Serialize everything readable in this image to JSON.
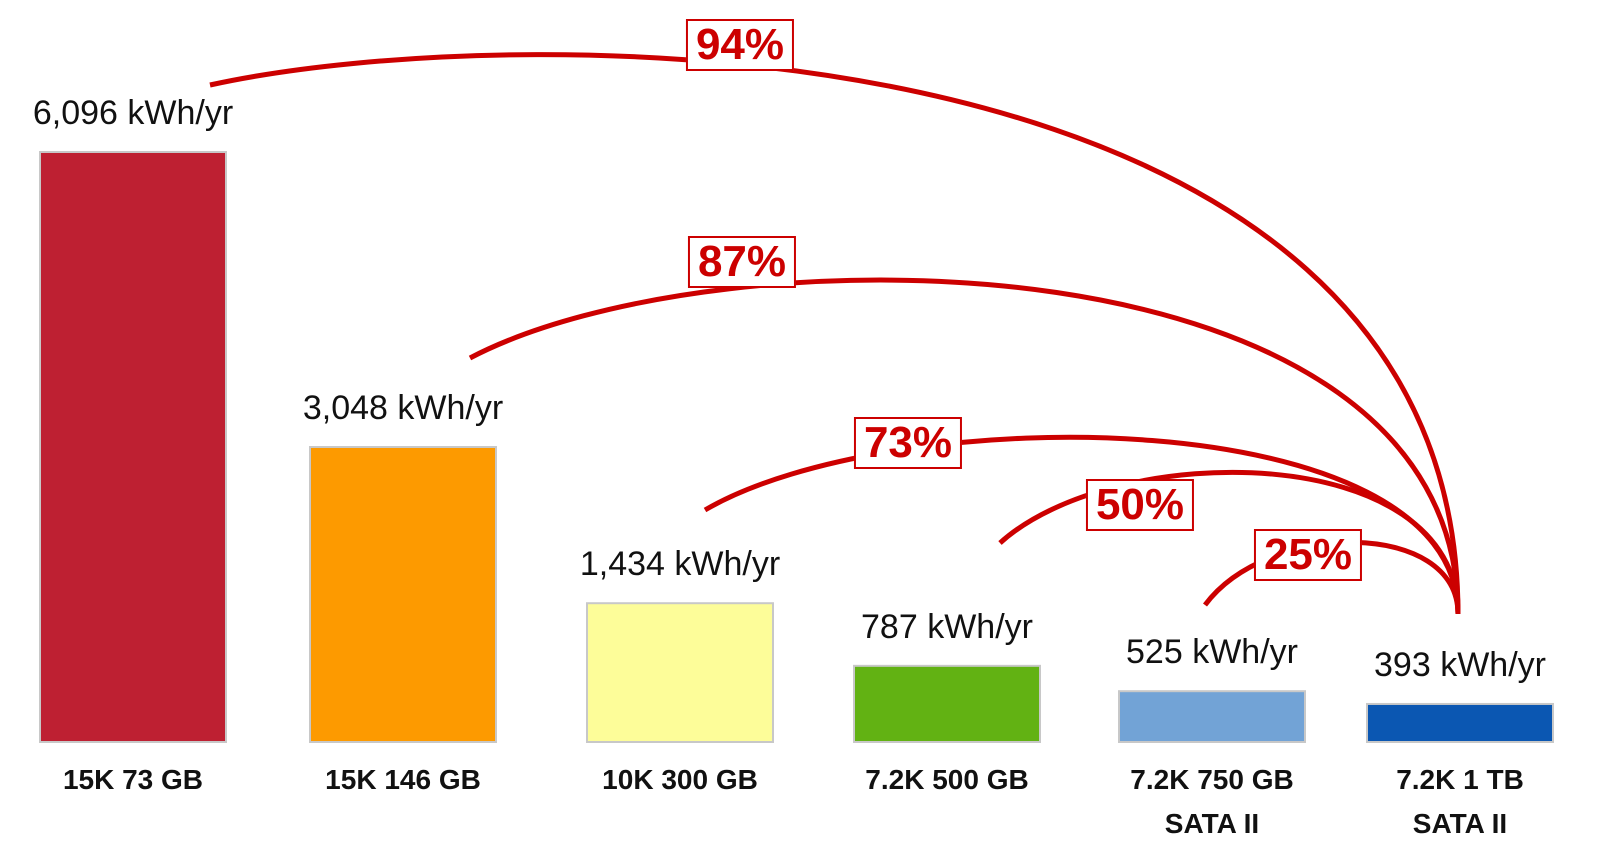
{
  "chart_data": {
    "type": "bar",
    "categories": [
      "15K 73 GB",
      "15K 146 GB",
      "10K 300 GB",
      "7.2K 500 GB",
      "7.2K 750 GB\nSATA II",
      "7.2K 1 TB\nSATA II"
    ],
    "values": [
      6096,
      3048,
      1434,
      787,
      525,
      393
    ],
    "value_labels": [
      "6,096 kWh/yr",
      "3,048 kWh/yr",
      "1,434 kWh/yr",
      "787 kWh/yr",
      "525 kWh/yr",
      "393 kWh/yr"
    ],
    "colors": [
      "#be2032",
      "#fd9a00",
      "#fdfd99",
      "#62b213",
      "#72a3d6",
      "#0b57b2"
    ],
    "savings": {
      "values": [
        94,
        87,
        73,
        50,
        25
      ],
      "value_labels": [
        "94%",
        "87%",
        "73%",
        "50%",
        "25%"
      ],
      "color": "#cc0000"
    }
  }
}
